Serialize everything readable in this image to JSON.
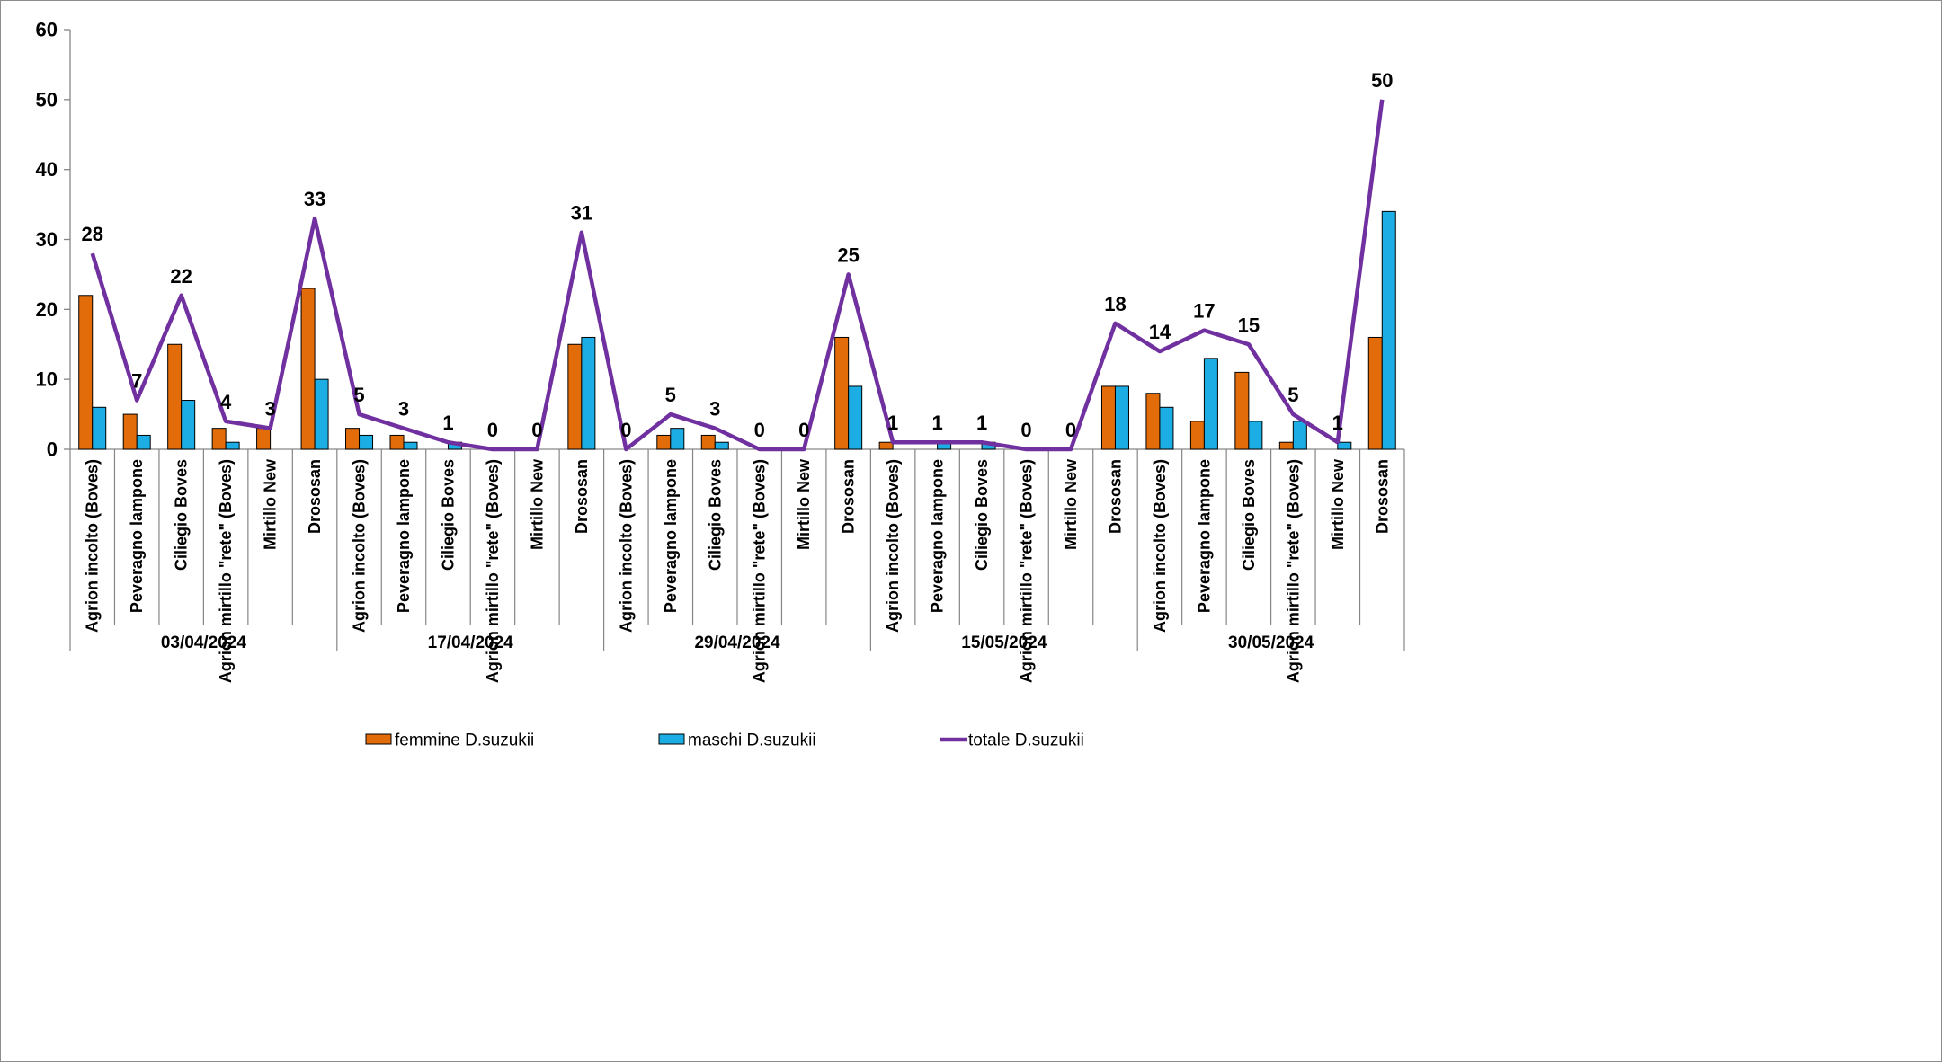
{
  "chart_data": {
    "type": "bar",
    "ylim": [
      0,
      60
    ],
    "yticks": [
      0,
      10,
      20,
      30,
      40,
      50,
      60
    ],
    "groups": [
      {
        "label": "03/04/2024",
        "size": 6
      },
      {
        "label": "17/04/2024",
        "size": 6
      },
      {
        "label": "29/04/2024",
        "size": 6
      },
      {
        "label": "15/05/2024",
        "size": 6
      },
      {
        "label": "30/05/2024",
        "size": 6
      }
    ],
    "categories": [
      "Agrion incolto (Boves)",
      "Peveragno lampone",
      "Ciliegio Boves",
      "Agrion mirtillo \"rete\" (Boves)",
      "Mirtillo New",
      "Drososan",
      "Agrion incolto (Boves)",
      "Peveragno lampone",
      "Ciliegio Boves",
      "Agrion mirtillo \"rete\" (Boves)",
      "Mirtillo New",
      "Drososan",
      "Agrion incolto (Boves)",
      "Peveragno lampone",
      "Ciliegio Boves",
      "Agrion mirtillo \"rete\" (Boves)",
      "Mirtillo New",
      "Drososan",
      "Agrion incolto (Boves)",
      "Peveragno lampone",
      "Ciliegio Boves",
      "Agrion mirtillo \"rete\" (Boves)",
      "Mirtillo New",
      "Drososan",
      "Agrion incolto (Boves)",
      "Peveragno lampone",
      "Ciliegio Boves",
      "Agrion mirtillo \"rete\" (Boves)",
      "Mirtillo New",
      "Drososan"
    ],
    "series": [
      {
        "name": "femmine D.suzukii",
        "type": "bar",
        "color": "#E36C0A",
        "values": [
          22,
          5,
          15,
          3,
          3,
          23,
          3,
          2,
          0,
          0,
          0,
          15,
          0,
          2,
          2,
          0,
          0,
          16,
          1,
          0,
          0,
          0,
          0,
          9,
          8,
          4,
          11,
          1,
          0,
          16
        ]
      },
      {
        "name": "maschi D.suzukii",
        "type": "bar",
        "color": "#1CADE4",
        "values": [
          6,
          2,
          7,
          1,
          0,
          10,
          2,
          1,
          1,
          0,
          0,
          16,
          0,
          3,
          1,
          0,
          0,
          9,
          0,
          1,
          1,
          0,
          0,
          9,
          6,
          13,
          4,
          4,
          1,
          34
        ]
      },
      {
        "name": "totale D.suzukii",
        "type": "line",
        "color": "#7030A0",
        "values": [
          28,
          7,
          22,
          4,
          3,
          33,
          5,
          3,
          1,
          0,
          0,
          31,
          0,
          5,
          3,
          0,
          0,
          25,
          1,
          1,
          1,
          0,
          0,
          18,
          14,
          17,
          15,
          5,
          1,
          50
        ]
      }
    ],
    "legend_position": "bottom",
    "grid": false
  }
}
